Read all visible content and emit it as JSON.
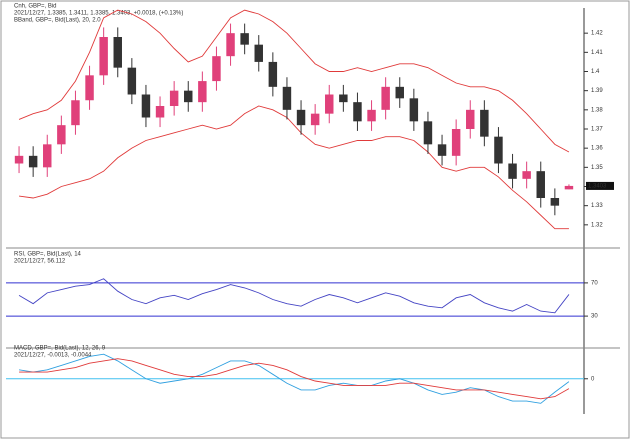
{
  "chart_data": [
    {
      "type": "candlestick",
      "title": "Cnh, GBP=, Bid",
      "subtitle": "2021/12/27, 1.3385, 1.3411, 1.3385, 1.3403, +0.0018, (+0.13%)",
      "indicator": "BBand, GBP=, Bid(Last), 20, 2.0",
      "open": [
        1.352,
        1.356,
        1.35,
        1.362,
        1.372,
        1.385,
        1.398,
        1.418,
        1.402,
        1.388,
        1.376,
        1.382,
        1.39,
        1.384,
        1.395,
        1.408,
        1.42,
        1.414,
        1.405,
        1.392,
        1.38,
        1.372,
        1.378,
        1.388,
        1.384,
        1.374,
        1.38,
        1.392,
        1.386,
        1.374,
        1.362,
        1.356,
        1.37,
        1.38,
        1.366,
        1.352,
        1.344,
        1.348,
        1.334,
        1.3385
      ],
      "high": [
        1.361,
        1.361,
        1.367,
        1.377,
        1.39,
        1.403,
        1.423,
        1.423,
        1.407,
        1.393,
        1.387,
        1.395,
        1.395,
        1.4,
        1.413,
        1.425,
        1.425,
        1.419,
        1.41,
        1.397,
        1.385,
        1.383,
        1.393,
        1.393,
        1.389,
        1.385,
        1.397,
        1.397,
        1.391,
        1.379,
        1.367,
        1.375,
        1.385,
        1.385,
        1.371,
        1.357,
        1.353,
        1.353,
        1.339,
        1.3411
      ],
      "low": [
        1.347,
        1.345,
        1.345,
        1.357,
        1.367,
        1.38,
        1.393,
        1.397,
        1.383,
        1.371,
        1.371,
        1.377,
        1.379,
        1.379,
        1.39,
        1.403,
        1.409,
        1.4,
        1.387,
        1.375,
        1.367,
        1.367,
        1.373,
        1.379,
        1.369,
        1.369,
        1.375,
        1.381,
        1.369,
        1.357,
        1.351,
        1.351,
        1.365,
        1.361,
        1.347,
        1.339,
        1.339,
        1.329,
        1.325,
        1.3385
      ],
      "close": [
        1.356,
        1.35,
        1.362,
        1.372,
        1.385,
        1.398,
        1.418,
        1.402,
        1.388,
        1.376,
        1.382,
        1.39,
        1.384,
        1.395,
        1.408,
        1.42,
        1.414,
        1.405,
        1.392,
        1.38,
        1.372,
        1.378,
        1.388,
        1.384,
        1.374,
        1.38,
        1.392,
        1.386,
        1.374,
        1.362,
        1.356,
        1.37,
        1.38,
        1.366,
        1.352,
        1.344,
        1.348,
        1.334,
        1.33,
        1.3403
      ],
      "up_color": "#e0407a",
      "down_color": "#333333",
      "bands": {
        "color": "#e03a3a",
        "upper": [
          1.375,
          1.378,
          1.38,
          1.385,
          1.395,
          1.41,
          1.428,
          1.432,
          1.43,
          1.426,
          1.42,
          1.412,
          1.405,
          1.408,
          1.418,
          1.428,
          1.432,
          1.43,
          1.426,
          1.42,
          1.412,
          1.404,
          1.4,
          1.4,
          1.402,
          1.4,
          1.402,
          1.404,
          1.404,
          1.402,
          1.398,
          1.394,
          1.392,
          1.392,
          1.39,
          1.385,
          1.378,
          1.37,
          1.362,
          1.358
        ],
        "lower": [
          1.335,
          1.334,
          1.336,
          1.34,
          1.342,
          1.344,
          1.348,
          1.355,
          1.36,
          1.364,
          1.366,
          1.368,
          1.37,
          1.372,
          1.37,
          1.372,
          1.378,
          1.382,
          1.38,
          1.376,
          1.368,
          1.362,
          1.36,
          1.362,
          1.364,
          1.364,
          1.366,
          1.366,
          1.364,
          1.358,
          1.35,
          1.348,
          1.35,
          1.35,
          1.345,
          1.338,
          1.332,
          1.325,
          1.318,
          1.318
        ]
      },
      "ylim": [
        1.31,
        1.43
      ],
      "yticks": [
        1.32,
        1.33,
        1.34,
        1.35,
        1.36,
        1.37,
        1.38,
        1.39,
        1.4,
        1.41,
        1.42
      ]
    },
    {
      "type": "line",
      "title": "RSI, GBP=, Bid(Last), 14",
      "subtitle": "2021/12/27, 56.112",
      "series": [
        {
          "color": "#4444c4",
          "values": [
            55,
            45,
            58,
            62,
            66,
            68,
            75,
            60,
            50,
            45,
            52,
            55,
            50,
            57,
            62,
            68,
            64,
            58,
            50,
            45,
            42,
            50,
            56,
            52,
            46,
            52,
            58,
            54,
            46,
            42,
            40,
            52,
            56,
            46,
            40,
            36,
            44,
            36,
            34,
            56.112
          ]
        }
      ],
      "levels": [
        70,
        30
      ],
      "level_color": "#3030d0",
      "ylim": [
        0,
        100
      ],
      "yticks": [
        30,
        70
      ]
    },
    {
      "type": "line",
      "title": "MACD, GBP=, Bid(Last), 12, 26, 9",
      "subtitle": "2021/12/27, -0.0013, -0.0044",
      "series": [
        {
          "color": "#30a0e0",
          "values": [
            0.004,
            0.003,
            0.004,
            0.006,
            0.008,
            0.01,
            0.011,
            0.008,
            0.004,
            0.0,
            -0.002,
            -0.001,
            0.0,
            0.002,
            0.005,
            0.008,
            0.008,
            0.006,
            0.002,
            -0.002,
            -0.005,
            -0.005,
            -0.003,
            -0.002,
            -0.003,
            -0.003,
            -0.001,
            0.0,
            -0.002,
            -0.005,
            -0.007,
            -0.006,
            -0.004,
            -0.005,
            -0.008,
            -0.01,
            -0.01,
            -0.011,
            -0.006,
            -0.0013
          ]
        },
        {
          "color": "#e03a3a",
          "values": [
            0.003,
            0.003,
            0.003,
            0.004,
            0.005,
            0.007,
            0.008,
            0.009,
            0.008,
            0.006,
            0.004,
            0.002,
            0.001,
            0.001,
            0.002,
            0.004,
            0.006,
            0.007,
            0.006,
            0.004,
            0.001,
            -0.001,
            -0.002,
            -0.003,
            -0.003,
            -0.003,
            -0.003,
            -0.002,
            -0.002,
            -0.003,
            -0.004,
            -0.005,
            -0.005,
            -0.005,
            -0.006,
            -0.007,
            -0.008,
            -0.009,
            -0.008,
            -0.0044
          ]
        }
      ],
      "levels": [
        0
      ],
      "level_color": "#40c0f0",
      "ylim": [
        -0.014,
        0.012
      ],
      "yticks": [
        0
      ]
    }
  ]
}
